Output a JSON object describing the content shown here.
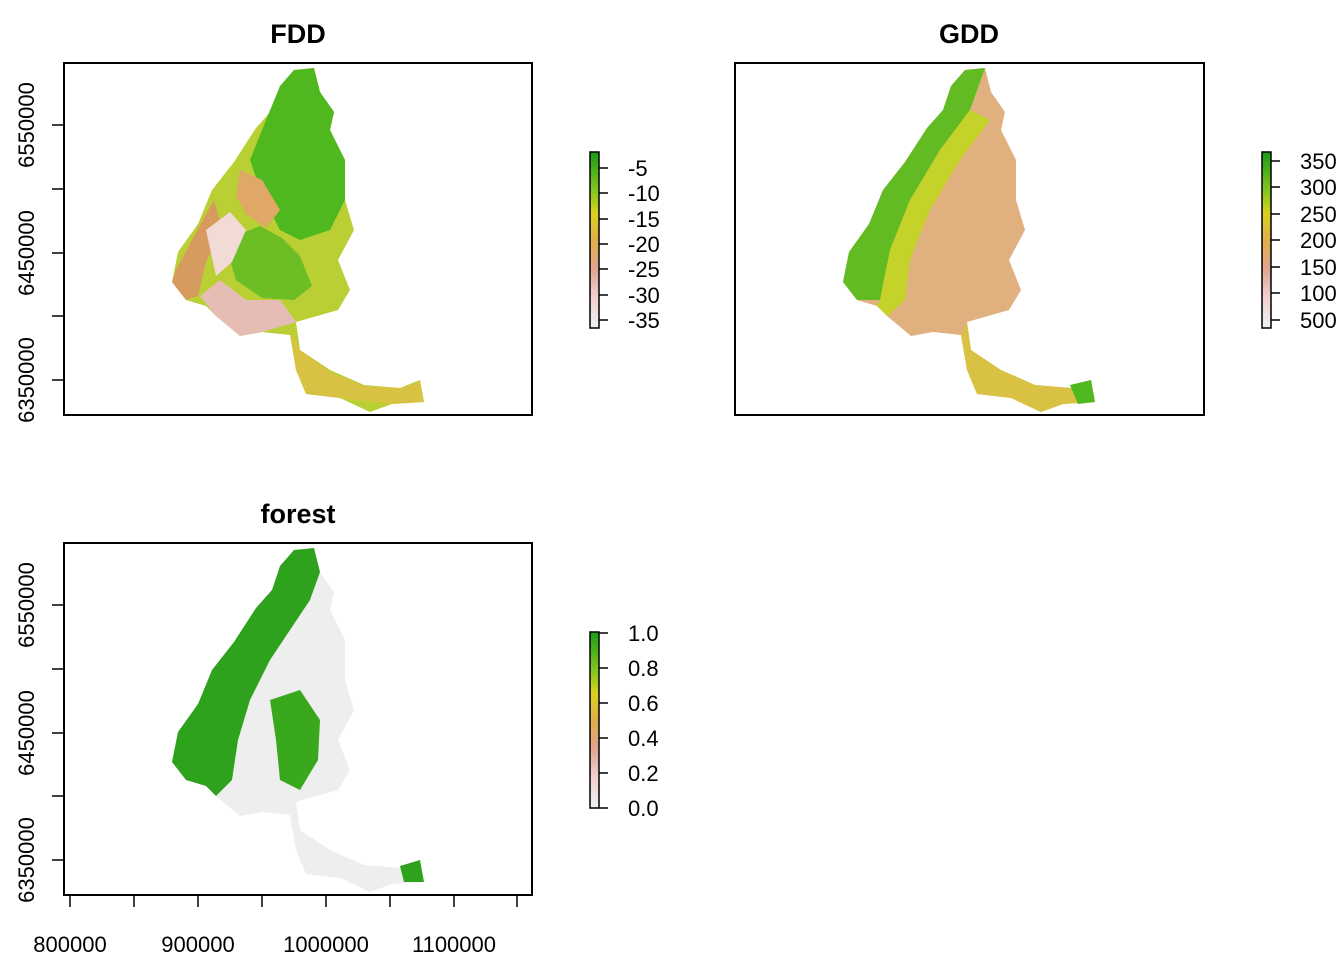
{
  "chart_data": [
    {
      "type": "heatmap",
      "title": "FDD",
      "ylabel": "",
      "xlabel": "",
      "y_ticks": [
        "6350000",
        "6450000",
        "6550000"
      ],
      "x_ticks": [],
      "legend_labels": [
        "-5",
        "-10",
        "-15",
        "-20",
        "-25",
        "-30",
        "-35"
      ],
      "legend_range": [
        -37,
        -2
      ],
      "colormap": "terrain (reversed)"
    },
    {
      "type": "heatmap",
      "title": "GDD",
      "ylabel": "",
      "xlabel": "",
      "y_ticks": [],
      "x_ticks": [],
      "legend_labels": [
        "350",
        "300",
        "250",
        "200",
        "150",
        "100",
        "500"
      ],
      "colormap": "terrain (reversed)"
    },
    {
      "type": "heatmap",
      "title": "forest",
      "ylabel": "",
      "xlabel": "",
      "y_ticks": [
        "6350000",
        "6450000",
        "6550000"
      ],
      "x_ticks": [
        "800000",
        "900000",
        "1000000",
        "1100000"
      ],
      "legend_labels": [
        "1.0",
        "0.8",
        "0.6",
        "0.4",
        "0.2",
        "0.0"
      ],
      "legend_range": [
        0,
        1
      ],
      "colormap": "terrain (reversed)"
    }
  ],
  "colors": {
    "green_dark": "#1a9b1a",
    "green": "#4fb81f",
    "yellow_green": "#b5cf1f",
    "yellow": "#d7d21e",
    "orange": "#deae4b",
    "salmon": "#e3a48e",
    "pink": "#efcfcf",
    "pale": "#f2f2f2"
  }
}
